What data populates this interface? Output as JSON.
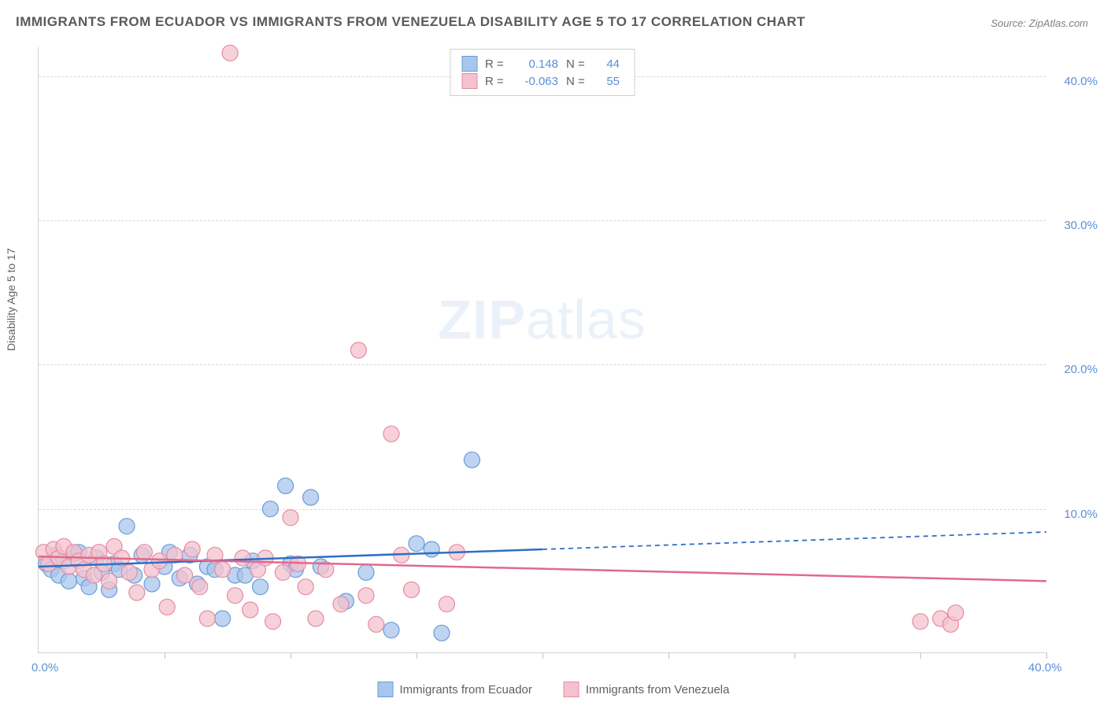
{
  "title": "IMMIGRANTS FROM ECUADOR VS IMMIGRANTS FROM VENEZUELA DISABILITY AGE 5 TO 17 CORRELATION CHART",
  "source": "Source: ZipAtlas.com",
  "watermark_bold": "ZIP",
  "watermark_light": "atlas",
  "ylabel": "Disability Age 5 to 17",
  "chart": {
    "type": "scatter",
    "xlim": [
      0,
      40
    ],
    "ylim": [
      0,
      42
    ],
    "yticks": [
      10,
      20,
      30,
      40
    ],
    "ytick_labels": [
      "10.0%",
      "20.0%",
      "30.0%",
      "40.0%"
    ],
    "xticks": [
      5,
      10,
      15,
      20,
      25,
      30,
      35,
      40
    ],
    "x_origin_label": "0.0%",
    "x_end_label": "40.0%",
    "background_color": "#ffffff",
    "grid_color": "#d8d8d8",
    "series": [
      {
        "name": "Immigrants from Ecuador",
        "marker_fill": "#a8c6ec",
        "marker_stroke": "#6a9bd8",
        "marker_opacity": 0.75,
        "marker_radius": 10,
        "line_color": "#2f6fc4",
        "line_width": 2.5,
        "r": "0.148",
        "n": "44",
        "trend_solid": {
          "x1": 0,
          "y1": 6.0,
          "x2": 20,
          "y2": 7.2
        },
        "trend_dashed": {
          "x1": 20,
          "y1": 7.2,
          "x2": 40,
          "y2": 8.4
        },
        "points": [
          [
            0.3,
            6.2
          ],
          [
            0.5,
            5.8
          ],
          [
            0.7,
            6.8
          ],
          [
            0.8,
            5.4
          ],
          [
            1.0,
            6.4
          ],
          [
            1.2,
            5.0
          ],
          [
            1.4,
            6.9
          ],
          [
            1.6,
            7.0
          ],
          [
            1.8,
            5.2
          ],
          [
            2.0,
            4.6
          ],
          [
            2.3,
            6.6
          ],
          [
            2.5,
            5.6
          ],
          [
            2.8,
            4.4
          ],
          [
            3.0,
            6.2
          ],
          [
            3.2,
            5.8
          ],
          [
            3.5,
            8.8
          ],
          [
            3.8,
            5.4
          ],
          [
            4.1,
            6.8
          ],
          [
            4.5,
            4.8
          ],
          [
            5.0,
            6.0
          ],
          [
            5.2,
            7.0
          ],
          [
            5.6,
            5.2
          ],
          [
            6.0,
            6.8
          ],
          [
            6.3,
            4.8
          ],
          [
            6.7,
            6.0
          ],
          [
            7.0,
            5.8
          ],
          [
            7.3,
            2.4
          ],
          [
            7.8,
            5.4
          ],
          [
            8.2,
            5.4
          ],
          [
            8.5,
            6.4
          ],
          [
            8.8,
            4.6
          ],
          [
            9.2,
            10.0
          ],
          [
            9.8,
            11.6
          ],
          [
            10.0,
            6.2
          ],
          [
            10.2,
            5.8
          ],
          [
            10.8,
            10.8
          ],
          [
            11.2,
            6.0
          ],
          [
            12.2,
            3.6
          ],
          [
            13.0,
            5.6
          ],
          [
            14.0,
            1.6
          ],
          [
            15.0,
            7.6
          ],
          [
            15.6,
            7.2
          ],
          [
            16.0,
            1.4
          ],
          [
            17.2,
            13.4
          ]
        ]
      },
      {
        "name": "Immigrants from Venezuela",
        "marker_fill": "#f4c2ce",
        "marker_stroke": "#e48ba3",
        "marker_opacity": 0.75,
        "marker_radius": 10,
        "line_color": "#e06a8a",
        "line_width": 2.5,
        "r": "-0.063",
        "n": "55",
        "trend_solid": {
          "x1": 0,
          "y1": 6.7,
          "x2": 40,
          "y2": 5.0
        },
        "points": [
          [
            0.2,
            7.0
          ],
          [
            0.4,
            6.2
          ],
          [
            0.6,
            7.2
          ],
          [
            0.8,
            6.6
          ],
          [
            1.0,
            7.4
          ],
          [
            1.2,
            6.0
          ],
          [
            1.4,
            7.0
          ],
          [
            1.6,
            6.4
          ],
          [
            1.8,
            5.8
          ],
          [
            2.0,
            6.8
          ],
          [
            2.2,
            5.4
          ],
          [
            2.4,
            7.0
          ],
          [
            2.6,
            6.2
          ],
          [
            2.8,
            5.0
          ],
          [
            3.0,
            7.4
          ],
          [
            3.3,
            6.6
          ],
          [
            3.6,
            5.6
          ],
          [
            3.9,
            4.2
          ],
          [
            4.2,
            7.0
          ],
          [
            4.5,
            5.8
          ],
          [
            4.8,
            6.4
          ],
          [
            5.1,
            3.2
          ],
          [
            5.4,
            6.8
          ],
          [
            5.8,
            5.4
          ],
          [
            6.1,
            7.2
          ],
          [
            6.4,
            4.6
          ],
          [
            6.7,
            2.4
          ],
          [
            7.0,
            6.8
          ],
          [
            7.3,
            5.8
          ],
          [
            7.6,
            41.6
          ],
          [
            7.8,
            4.0
          ],
          [
            8.1,
            6.6
          ],
          [
            8.4,
            3.0
          ],
          [
            8.7,
            5.8
          ],
          [
            9.0,
            6.6
          ],
          [
            9.3,
            2.2
          ],
          [
            9.7,
            5.6
          ],
          [
            10.0,
            9.4
          ],
          [
            10.3,
            6.2
          ],
          [
            10.6,
            4.6
          ],
          [
            11.0,
            2.4
          ],
          [
            11.4,
            5.8
          ],
          [
            12.0,
            3.4
          ],
          [
            12.7,
            21.0
          ],
          [
            13.0,
            4.0
          ],
          [
            13.4,
            2.0
          ],
          [
            14.0,
            15.2
          ],
          [
            14.4,
            6.8
          ],
          [
            14.8,
            4.4
          ],
          [
            16.2,
            3.4
          ],
          [
            16.6,
            7.0
          ],
          [
            35.0,
            2.2
          ],
          [
            35.8,
            2.4
          ],
          [
            36.2,
            2.0
          ],
          [
            36.4,
            2.8
          ]
        ]
      }
    ]
  },
  "legend": {
    "series1_label": "Immigrants from Ecuador",
    "series2_label": "Immigrants from Venezuela"
  },
  "stats_labels": {
    "r": "R =",
    "n": "N ="
  }
}
